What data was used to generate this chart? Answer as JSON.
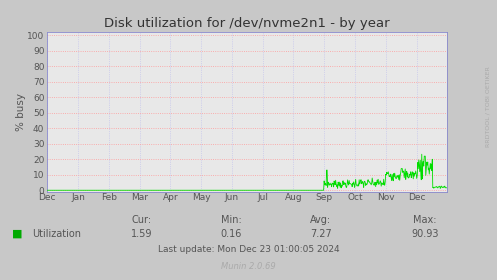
{
  "title": "Disk utilization for /dev/nvme2n1 - by year",
  "ylabel": "% busy",
  "yticks": [
    0,
    10,
    20,
    30,
    40,
    50,
    60,
    70,
    80,
    90,
    100
  ],
  "ylim": [
    0,
    100
  ],
  "xtick_labels": [
    "Dec",
    "Jan",
    "Feb",
    "Mar",
    "Apr",
    "May",
    "Jun",
    "Jul",
    "Aug",
    "Sep",
    "Oct",
    "Nov",
    "Dec"
  ],
  "bg_color": "#c8c8c8",
  "plot_bg_color": "#e8e8e8",
  "grid_color_h": "#ff9999",
  "grid_color_v": "#bbbbee",
  "line_color": "#00dd00",
  "title_color": "#333333",
  "label_color": "#555555",
  "legend_label": "Utilization",
  "legend_color": "#00aa00",
  "cur_label": "Cur:",
  "cur_val": "1.59",
  "min_label": "Min:",
  "min_val": "0.16",
  "avg_label": "Avg:",
  "avg_val": "7.27",
  "max_label": "Max:",
  "max_val": "90.93",
  "last_update": "Last update: Mon Dec 23 01:00:05 2024",
  "munin_version": "Munin 2.0.69",
  "rrdtool_label": "RRDTOOL / TOBI OETIKER",
  "arrow_color": "#8888cc",
  "spine_color": "#8888cc"
}
